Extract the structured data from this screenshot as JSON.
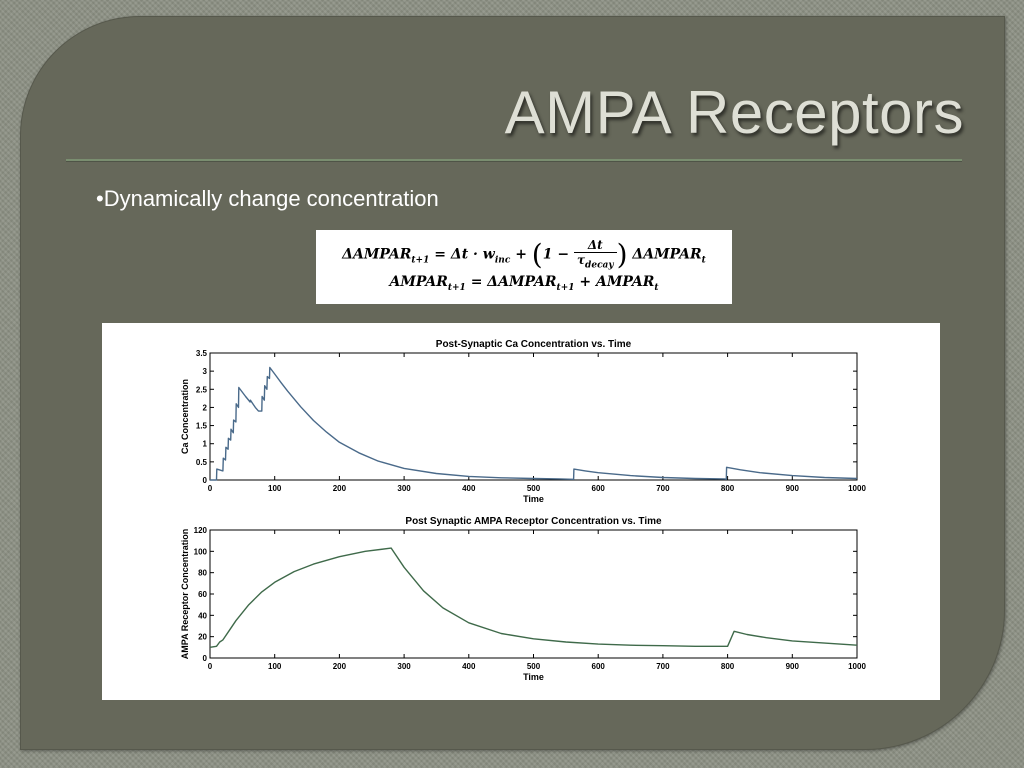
{
  "slide": {
    "title": "AMPA Receptors",
    "bullet": "•Dynamically change concentration",
    "equation": {
      "line1": {
        "lhs": "ΔAMPAR",
        "lhs_sub": "t+1",
        "eq": "=",
        "dt_term": "Δt · w",
        "w_sub": "inc",
        "plus": "+",
        "one_minus": "1 −",
        "frac_num": "Δt",
        "frac_den": "τ",
        "tau_sub": "decay",
        "rhs": "ΔAMPAR",
        "rhs_sub": "t"
      },
      "line2": {
        "lhs": "AMPAR",
        "lhs_sub": "t+1",
        "eq": "=",
        "term1": "ΔAMPAR",
        "term1_sub": "t+1",
        "plus": "+",
        "term2": "AMPAR",
        "term2_sub": "t"
      }
    },
    "colors": {
      "background": "#66685a",
      "line": "#4a6a8a",
      "line2": "#3f6a4a"
    }
  },
  "chart_data": [
    {
      "type": "line",
      "title": "Post-Synaptic Ca Concentration vs. Time",
      "xlabel": "Time",
      "ylabel": "Ca Concentration",
      "xlim": [
        0,
        1000
      ],
      "ylim": [
        0,
        3.5
      ],
      "xticks": [
        0,
        100,
        200,
        300,
        400,
        500,
        600,
        700,
        800,
        900,
        1000
      ],
      "yticks": [
        0,
        0.5,
        1,
        1.5,
        2,
        2.5,
        3,
        3.5
      ],
      "ytick_labels": [
        "0",
        "0.5",
        "1",
        "1.5",
        "2",
        "2.5",
        "3",
        "3.5"
      ],
      "series": [
        {
          "x": [
            0,
            10,
            10.5,
            20,
            20.5,
            24,
            24.5,
            28,
            28.5,
            32,
            32.5,
            36,
            36.5,
            40,
            40.5,
            44,
            44.5,
            55,
            62,
            62.5,
            70,
            75,
            80,
            80.5,
            84,
            84.5,
            88,
            88.5,
            92,
            92.5,
            100,
            110,
            120,
            140,
            160,
            180,
            200,
            230,
            260,
            300,
            350,
            400,
            450,
            500,
            540,
            560,
            562,
            562.5,
            580,
            600,
            650,
            700,
            750,
            795,
            798,
            798.5,
            820,
            850,
            900,
            950,
            1000
          ],
          "y": [
            0,
            0,
            0.3,
            0.25,
            0.6,
            0.55,
            0.9,
            0.85,
            1.15,
            1.1,
            1.4,
            1.3,
            1.65,
            1.6,
            2.1,
            2.0,
            2.55,
            2.3,
            2.15,
            2.2,
            2.0,
            1.9,
            1.9,
            2.3,
            2.2,
            2.6,
            2.5,
            2.85,
            2.8,
            3.1,
            2.92,
            2.68,
            2.45,
            2.02,
            1.64,
            1.32,
            1.04,
            0.75,
            0.52,
            0.32,
            0.18,
            0.1,
            0.06,
            0.04,
            0.03,
            0.02,
            0.02,
            0.3,
            0.25,
            0.2,
            0.12,
            0.07,
            0.04,
            0.03,
            0.02,
            0.35,
            0.28,
            0.2,
            0.12,
            0.07,
            0.04
          ]
        }
      ]
    },
    {
      "type": "line",
      "title": "Post Synaptic AMPA Receptor Concentration vs. Time",
      "xlabel": "Time",
      "ylabel": "AMPA Receptor Concentration",
      "xlim": [
        0,
        1000
      ],
      "ylim": [
        0,
        120
      ],
      "xticks": [
        0,
        100,
        200,
        300,
        400,
        500,
        600,
        700,
        800,
        900,
        1000
      ],
      "yticks": [
        0,
        20,
        40,
        60,
        80,
        100,
        120
      ],
      "ytick_labels": [
        "0",
        "20",
        "40",
        "60",
        "80",
        "100",
        "120"
      ],
      "series": [
        {
          "x": [
            0,
            10,
            15,
            20,
            30,
            40,
            60,
            80,
            100,
            130,
            160,
            200,
            240,
            280,
            300,
            330,
            360,
            400,
            450,
            500,
            550,
            600,
            650,
            700,
            750,
            800,
            810,
            830,
            860,
            900,
            950,
            1000
          ],
          "y": [
            10,
            11,
            15,
            17,
            26,
            35,
            50,
            62,
            71,
            81,
            88,
            95,
            100,
            103,
            85,
            63,
            47,
            33,
            23,
            18,
            15,
            13,
            12,
            11.5,
            11,
            11,
            25,
            22,
            19,
            16,
            14,
            12
          ]
        }
      ]
    }
  ]
}
